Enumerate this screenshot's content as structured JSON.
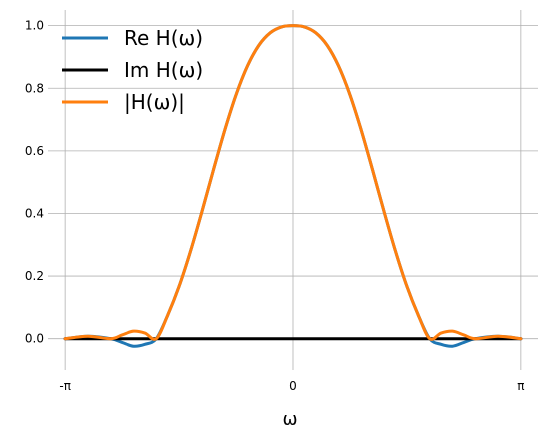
{
  "chart_data": {
    "type": "line",
    "xlabel": "ω",
    "ylabel": "",
    "xlim": [
      -3.14159,
      3.14159
    ],
    "ylim": [
      -0.1,
      1.05
    ],
    "xticks": [
      {
        "value": -3.14159,
        "label": "-π"
      },
      {
        "value": 0,
        "label": "0"
      },
      {
        "value": 3.14159,
        "label": "π"
      }
    ],
    "yticks": [
      {
        "value": 0.0,
        "label": "0.0"
      },
      {
        "value": 0.2,
        "label": "0.2"
      },
      {
        "value": 0.4,
        "label": "0.4"
      },
      {
        "value": 0.6,
        "label": "0.6"
      },
      {
        "value": 0.8,
        "label": "0.8"
      },
      {
        "value": 1.0,
        "label": "1.0"
      }
    ],
    "grid": true,
    "legend": "top-left",
    "x": [
      -3.1416,
      -2.8274,
      -2.5133,
      -2.3562,
      -2.1991,
      -2.042,
      -1.885,
      -1.7279,
      -1.5708,
      -1.4137,
      -1.2566,
      -1.0996,
      -0.9425,
      -0.7854,
      -0.6283,
      -0.4712,
      -0.3142,
      -0.1571,
      0.0,
      0.1571,
      0.3142,
      0.4712,
      0.6283,
      0.7854,
      0.9425,
      1.0996,
      1.2566,
      1.4137,
      1.5708,
      1.7279,
      1.885,
      2.042,
      2.1991,
      2.3562,
      2.5133,
      2.8274,
      3.1416
    ],
    "series": [
      {
        "name": "Re H(ω)",
        "color": "#1f77b4",
        "values": [
          0.0,
          0.008,
          0.0,
          -0.012,
          -0.024,
          -0.018,
          0.0,
          0.075,
          0.167,
          0.279,
          0.405,
          0.537,
          0.665,
          0.779,
          0.871,
          0.937,
          0.977,
          0.996,
          1.0,
          0.996,
          0.977,
          0.937,
          0.871,
          0.779,
          0.665,
          0.537,
          0.405,
          0.279,
          0.167,
          0.075,
          0.0,
          -0.018,
          -0.024,
          -0.012,
          0.0,
          0.008,
          0.0
        ]
      },
      {
        "name": "Im H(ω)",
        "color": "#000000",
        "values": [
          0.0,
          0.0,
          0.0,
          0.0,
          0.0,
          0.0,
          0.0,
          0.0,
          0.0,
          0.0,
          0.0,
          0.0,
          0.0,
          0.0,
          0.0,
          0.0,
          0.0,
          0.0,
          0.0,
          0.0,
          0.0,
          0.0,
          0.0,
          0.0,
          0.0,
          0.0,
          0.0,
          0.0,
          0.0,
          0.0,
          0.0,
          0.0,
          0.0,
          0.0,
          0.0,
          0.0,
          0.0
        ]
      },
      {
        "name": "|H(ω)|",
        "color": "#ff7f0e",
        "values": [
          0.0,
          0.008,
          0.0,
          0.012,
          0.024,
          0.018,
          0.0,
          0.075,
          0.167,
          0.279,
          0.405,
          0.537,
          0.665,
          0.779,
          0.871,
          0.937,
          0.977,
          0.996,
          1.0,
          0.996,
          0.977,
          0.937,
          0.871,
          0.779,
          0.665,
          0.537,
          0.405,
          0.279,
          0.167,
          0.075,
          0.0,
          0.018,
          0.024,
          0.012,
          0.0,
          0.008,
          0.0
        ]
      }
    ]
  }
}
